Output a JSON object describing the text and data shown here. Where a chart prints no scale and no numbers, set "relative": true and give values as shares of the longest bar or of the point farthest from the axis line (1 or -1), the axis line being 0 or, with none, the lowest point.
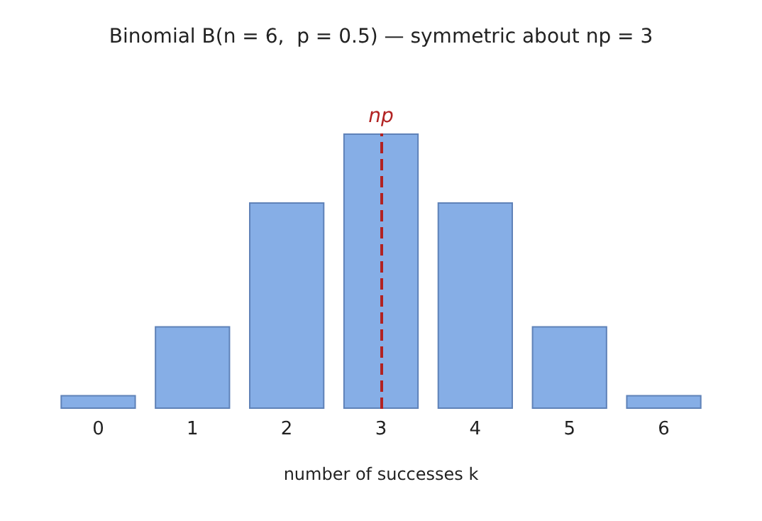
{
  "chart_data": {
    "type": "bar",
    "title": "Binomial B(n = 6,  p = 0.5) — symmetric about np = 3",
    "xlabel": "number of successes k",
    "categories": [
      "0",
      "1",
      "2",
      "3",
      "4",
      "5",
      "6"
    ],
    "values": [
      0.05,
      0.3,
      0.75,
      1,
      0.75,
      0.3,
      0.05
    ],
    "color": "#86aee6",
    "relative": true,
    "ref_lines": [
      {
        "axis": "x",
        "value": "3",
        "label": "np",
        "color": "#b22222",
        "line_style": "dashed"
      }
    ]
  }
}
